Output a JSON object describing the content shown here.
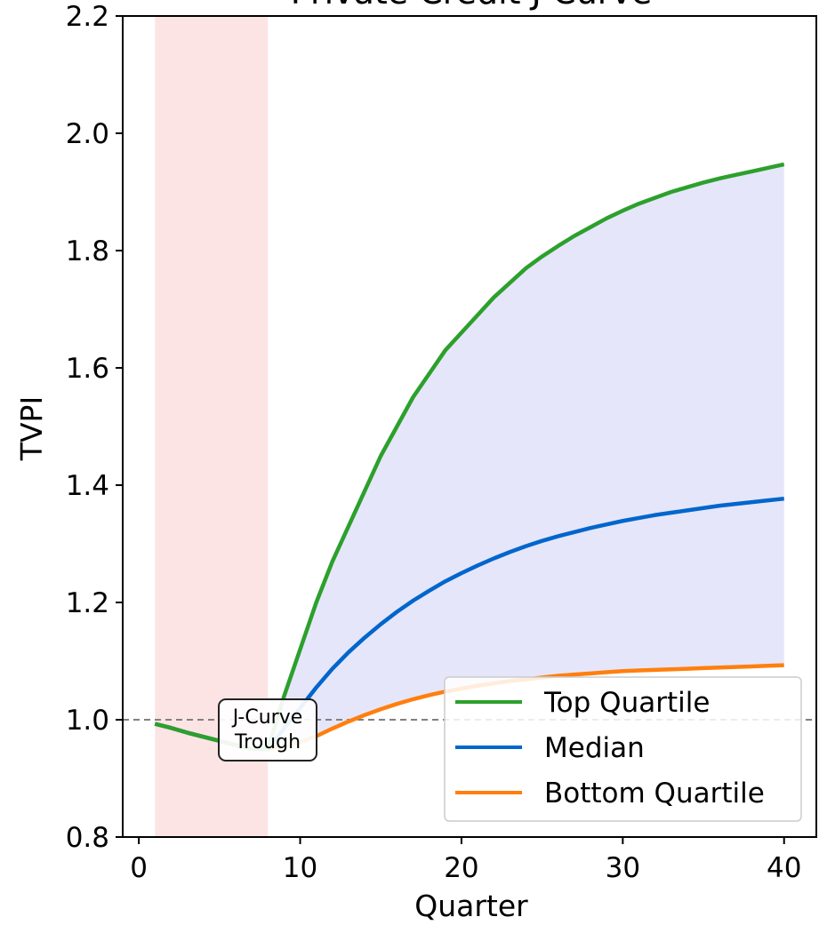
{
  "chart_data": {
    "type": "line",
    "title": "Private Credit J-Curve",
    "xlabel": "Quarter",
    "ylabel": "TVPI",
    "xlim": [
      -1,
      42
    ],
    "ylim": [
      0.8,
      2.2
    ],
    "xticks": [
      0,
      10,
      20,
      30,
      40
    ],
    "yticks": [
      0.8,
      1.0,
      1.2,
      1.4,
      1.6,
      1.8,
      2.0,
      2.2
    ],
    "x_tick_labels": [
      "0",
      "10",
      "20",
      "30",
      "40"
    ],
    "y_tick_labels": [
      "0.8",
      "1.0",
      "1.2",
      "1.4",
      "1.6",
      "1.8",
      "2.0",
      "2.2"
    ],
    "reference_line": {
      "y": 1.0,
      "style": "dashed",
      "color": "#808080"
    },
    "shaded_region": {
      "x": [
        1,
        8
      ],
      "color": "#fce4e4"
    },
    "fill_between": {
      "lower": "Bottom Quartile",
      "upper": "Top Quartile",
      "color": "#e6e6fa"
    },
    "annotation": {
      "line1": "J-Curve",
      "line2": "Trough",
      "x": 8,
      "y": 0.975
    },
    "legend": {
      "position": "lower right"
    },
    "x": [
      1,
      2,
      3,
      4,
      5,
      6,
      7,
      8,
      9,
      10,
      11,
      12,
      13,
      14,
      15,
      16,
      17,
      18,
      19,
      20,
      21,
      22,
      23,
      24,
      25,
      26,
      27,
      28,
      29,
      30,
      31,
      32,
      33,
      34,
      35,
      36,
      37,
      38,
      39,
      40
    ],
    "series": [
      {
        "name": "Top Quartile",
        "color": "#2ca02c",
        "values": [
          0.993,
          0.986,
          0.978,
          0.971,
          0.964,
          0.957,
          0.95,
          0.95,
          1.04,
          1.12,
          1.2,
          1.27,
          1.33,
          1.39,
          1.45,
          1.5,
          1.55,
          1.59,
          1.63,
          1.66,
          1.69,
          1.72,
          1.745,
          1.77,
          1.79,
          1.808,
          1.825,
          1.84,
          1.855,
          1.868,
          1.88,
          1.89,
          1.9,
          1.908,
          1.916,
          1.923,
          1.929,
          1.935,
          1.941,
          1.947
        ]
      },
      {
        "name": "Median",
        "color": "#0066cc",
        "values": [
          0.993,
          0.986,
          0.978,
          0.971,
          0.964,
          0.957,
          0.95,
          0.95,
          0.985,
          1.02,
          1.055,
          1.087,
          1.115,
          1.14,
          1.163,
          1.184,
          1.203,
          1.22,
          1.236,
          1.25,
          1.263,
          1.275,
          1.286,
          1.296,
          1.305,
          1.313,
          1.32,
          1.327,
          1.333,
          1.339,
          1.344,
          1.349,
          1.353,
          1.357,
          1.361,
          1.365,
          1.368,
          1.371,
          1.374,
          1.377
        ]
      },
      {
        "name": "Bottom Quartile",
        "color": "#ff7f0e",
        "values": [
          0.993,
          0.986,
          0.978,
          0.971,
          0.964,
          0.957,
          0.95,
          0.95,
          0.955,
          0.962,
          0.972,
          0.985,
          0.997,
          1.008,
          1.018,
          1.027,
          1.035,
          1.042,
          1.048,
          1.053,
          1.058,
          1.062,
          1.066,
          1.069,
          1.072,
          1.075,
          1.077,
          1.079,
          1.081,
          1.083,
          1.084,
          1.085,
          1.086,
          1.087,
          1.088,
          1.089,
          1.09,
          1.091,
          1.092,
          1.093
        ]
      }
    ]
  }
}
